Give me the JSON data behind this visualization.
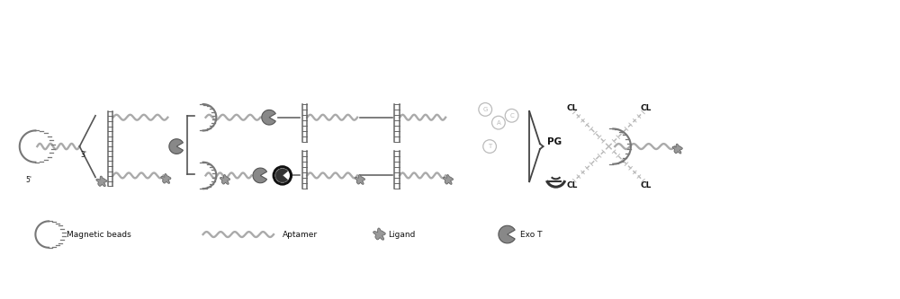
{
  "bg_color": "#ffffff",
  "dark_gray": "#555555",
  "mid_gray": "#888888",
  "light_gray": "#aaaaaa",
  "very_light_gray": "#cccccc",
  "black": "#111111",
  "figsize": [
    10.0,
    3.33
  ],
  "dpi": 100,
  "xlim": [
    0,
    100
  ],
  "ylim": [
    0,
    33.3
  ]
}
